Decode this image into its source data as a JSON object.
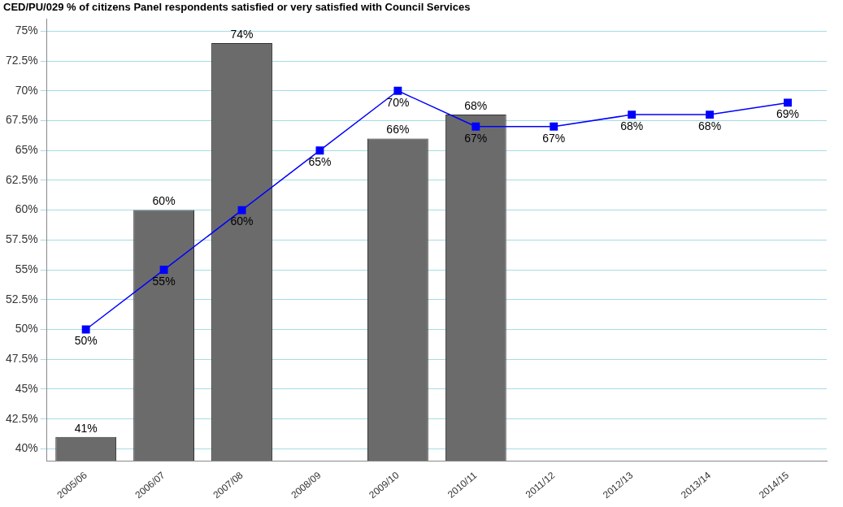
{
  "chart_data": {
    "type": "bar",
    "title": "CED/PU/029 % of citizens Panel respondents satisfied or very satisfied with Council Services",
    "categories": [
      "2005/06",
      "2006/07",
      "2007/08",
      "2008/09",
      "2009/10",
      "2010/11",
      "2011/12",
      "2012/13",
      "2013/14",
      "2014/15"
    ],
    "series": [
      {
        "color": "#6b6b6b",
        "values": [
          41,
          60,
          74,
          null,
          66,
          68,
          null,
          null,
          null,
          null
        ],
        "value_labels": [
          "41%",
          "60%",
          "74%",
          null,
          "66%",
          "68%",
          null,
          null,
          null,
          null
        ]
      },
      {
        "type": "line",
        "color": "#0000ff",
        "values": [
          50,
          55,
          60,
          65,
          70,
          67,
          67,
          68,
          68,
          69
        ],
        "value_labels": [
          "50%",
          "55%",
          "60%",
          "65%",
          "70%",
          "67%",
          "67%",
          "68%",
          "68%",
          "69%"
        ]
      }
    ],
    "ylim": [
      39,
      76
    ],
    "yticks": [
      {
        "value": 40,
        "label": "40%"
      },
      {
        "value": 42.5,
        "label": "42.5%"
      },
      {
        "value": 45,
        "label": "45%"
      },
      {
        "value": 47.5,
        "label": "47.5%"
      },
      {
        "value": 50,
        "label": "50%"
      },
      {
        "value": 52.5,
        "label": "52.5%"
      },
      {
        "value": 55,
        "label": "55%"
      },
      {
        "value": 57.5,
        "label": "57.5%"
      },
      {
        "value": 60,
        "label": "60%"
      },
      {
        "value": 62.5,
        "label": "62.5%"
      },
      {
        "value": 65,
        "label": "65%"
      },
      {
        "value": 67.5,
        "label": "67.5%"
      },
      {
        "value": 70,
        "label": "70%"
      },
      {
        "value": 72.5,
        "label": "72.5%"
      },
      {
        "value": 75,
        "label": "75%"
      }
    ],
    "grid": "y",
    "legend": false,
    "marker": "square",
    "line_style": "solid"
  }
}
